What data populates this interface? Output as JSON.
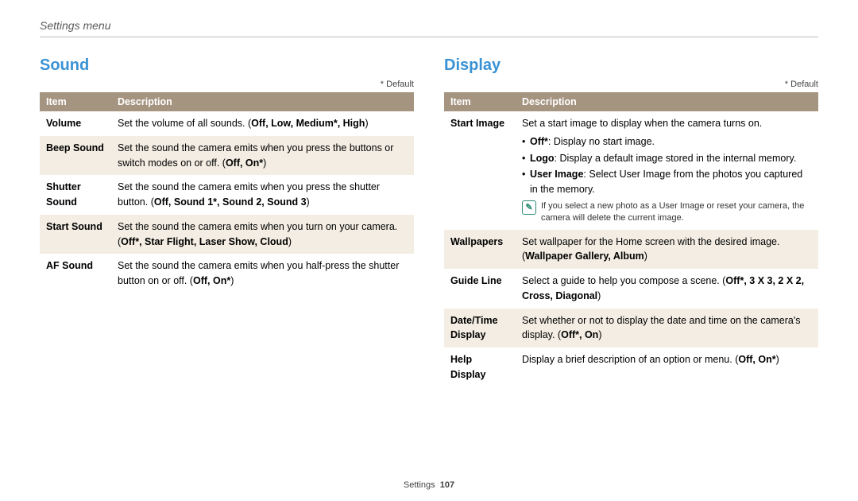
{
  "header": {
    "breadcrumb": "Settings menu"
  },
  "footer": {
    "label": "Settings",
    "page": "107"
  },
  "left": {
    "title": "Sound",
    "default_note": "* Default",
    "th_item": "Item",
    "th_desc": "Description",
    "rows": {
      "r0": {
        "item": "Volume",
        "prefix": "Set the volume of all sounds. (",
        "opts": "Off, Low, Medium*, High",
        "suffix": ")"
      },
      "r1": {
        "item": "Beep Sound",
        "prefix": "Set the sound the camera emits when you press the buttons or switch modes on or off. (",
        "opts": "Off, On*",
        "suffix": ")"
      },
      "r2": {
        "item": "Shutter Sound",
        "prefix": "Set the sound the camera emits when you press the shutter button. (",
        "opts": "Off, Sound 1*, Sound 2, Sound 3",
        "suffix": ")"
      },
      "r3": {
        "item": "Start Sound",
        "prefix": "Set the sound the camera emits when you turn on your camera. (",
        "opts": "Off*, Star Flight, Laser Show, Cloud",
        "suffix": ")"
      },
      "r4": {
        "item": "AF Sound",
        "prefix": "Set the sound the camera emits when you half-press the shutter button on or off. (",
        "opts": "Off, On*",
        "suffix": ")"
      }
    }
  },
  "right": {
    "title": "Display",
    "default_note": "* Default",
    "th_item": "Item",
    "th_desc": "Description",
    "rows": {
      "r0": {
        "item": "Start Image",
        "lead": "Set a start image to display when the camera turns on.",
        "b0": {
          "label": "Off*",
          "text": ": Display no start image."
        },
        "b1": {
          "label": "Logo",
          "text": ": Display a default image stored in the internal memory."
        },
        "b2": {
          "label": "User Image",
          "text": ": Select User Image from the photos you captured in the memory."
        },
        "note": "If you select a new photo as a User Image or reset your camera, the camera will delete the current image."
      },
      "r1": {
        "item": "Wallpapers",
        "prefix": "Set wallpaper for the Home screen with the desired image. (",
        "opts": "Wallpaper Gallery, Album",
        "suffix": ")"
      },
      "r2": {
        "item": "Guide Line",
        "prefix": "Select a guide to help you compose a scene. (",
        "opts": "Off*, 3 X 3, 2 X 2, Cross, Diagonal",
        "suffix": ")"
      },
      "r3": {
        "item": "Date/Time Display",
        "prefix": "Set whether or not to display the date and time on the camera's display. (",
        "opts": "Off*, On",
        "suffix": ")"
      },
      "r4": {
        "item": "Help Display",
        "prefix": "Display a brief description of an option or menu. (",
        "opts": "Off, On*",
        "suffix": ")"
      }
    }
  }
}
